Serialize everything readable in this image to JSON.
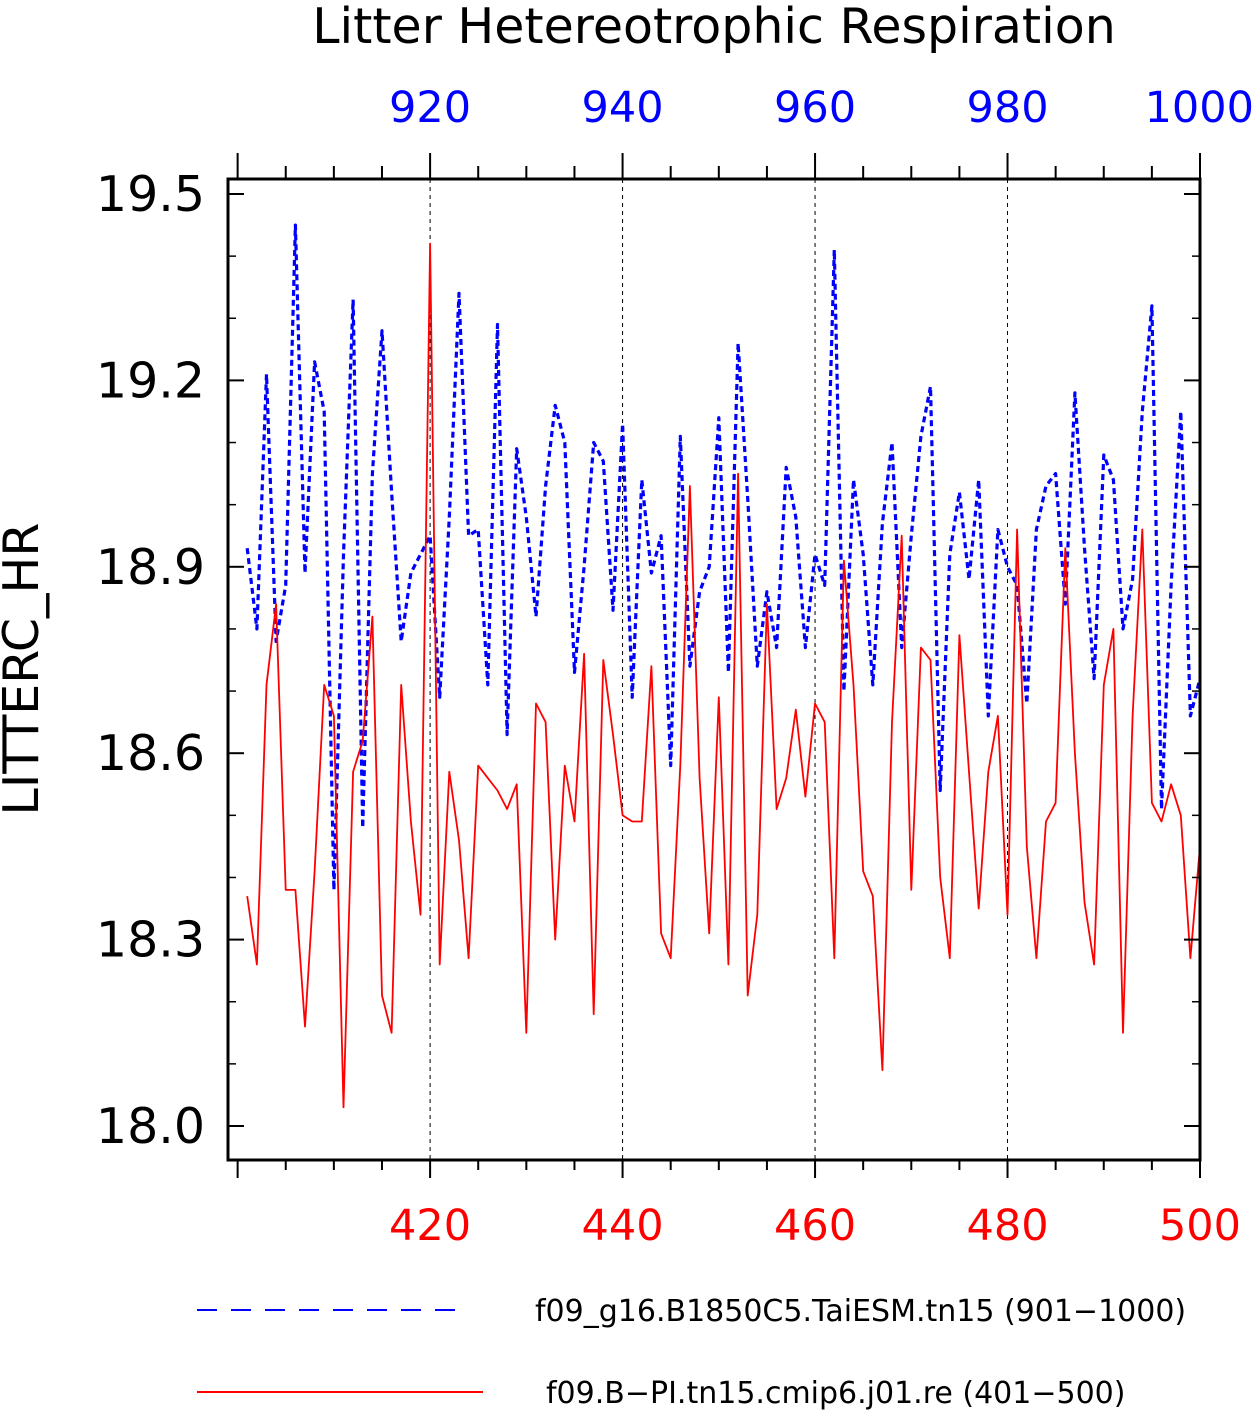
{
  "chart_data": {
    "type": "line",
    "title": "Litter Hetereotrophic Respiration",
    "ylabel": "LITTERC_HR",
    "xlabel": "",
    "ylim": [
      18.0,
      19.5
    ],
    "yticks": [
      "18.0",
      "18.3",
      "18.6",
      "18.9",
      "19.2",
      "19.5"
    ],
    "x_bottom": {
      "range": [
        401,
        500
      ],
      "ticks": [
        "420",
        "440",
        "460",
        "480",
        "500"
      ],
      "color": "#ff0000"
    },
    "x_top": {
      "range": [
        901,
        1000
      ],
      "ticks": [
        "920",
        "940",
        "960",
        "980",
        "1000"
      ],
      "color": "#0000ff"
    },
    "grid": "vertical dashed at major ticks",
    "legend_position": "bottom",
    "series": [
      {
        "name": "f09_g16.B1850C5.TaiESM.tn15 (901−1000)",
        "color": "#0000ff",
        "style": "dashed",
        "x_axis": "top",
        "x": [
          901,
          902,
          903,
          904,
          905,
          906,
          907,
          908,
          909,
          910,
          911,
          912,
          913,
          914,
          915,
          916,
          917,
          918,
          919,
          920,
          921,
          922,
          923,
          924,
          925,
          926,
          927,
          928,
          929,
          930,
          931,
          932,
          933,
          934,
          935,
          936,
          937,
          938,
          939,
          940,
          941,
          942,
          943,
          944,
          945,
          946,
          947,
          948,
          949,
          950,
          951,
          952,
          953,
          954,
          955,
          956,
          957,
          958,
          959,
          960,
          961,
          962,
          963,
          964,
          965,
          966,
          967,
          968,
          969,
          970,
          971,
          972,
          973,
          974,
          975,
          976,
          977,
          978,
          979,
          980,
          981,
          982,
          983,
          984,
          985,
          986,
          987,
          988,
          989,
          990,
          991,
          992,
          993,
          994,
          995,
          996,
          997,
          998,
          999,
          1000
        ],
        "values": [
          18.93,
          18.8,
          19.21,
          18.78,
          18.87,
          19.45,
          18.89,
          19.23,
          19.15,
          18.38,
          18.92,
          19.33,
          18.48,
          19.05,
          19.28,
          19.02,
          18.78,
          18.89,
          18.92,
          18.95,
          18.69,
          18.98,
          19.34,
          18.95,
          18.96,
          18.71,
          19.29,
          18.63,
          19.09,
          18.98,
          18.82,
          19.03,
          19.16,
          19.1,
          18.73,
          18.9,
          19.1,
          19.07,
          18.83,
          19.13,
          18.69,
          19.04,
          18.89,
          18.95,
          18.58,
          19.11,
          18.74,
          18.86,
          18.9,
          19.14,
          18.73,
          19.26,
          19.01,
          18.74,
          18.86,
          18.77,
          19.06,
          18.98,
          18.77,
          18.92,
          18.87,
          19.41,
          18.7,
          19.04,
          18.92,
          18.71,
          18.97,
          19.1,
          18.77,
          18.95,
          19.11,
          19.19,
          18.54,
          18.92,
          19.02,
          18.88,
          19.04,
          18.66,
          18.96,
          18.9,
          18.87,
          18.68,
          18.96,
          19.03,
          19.05,
          18.84,
          19.18,
          18.93,
          18.72,
          19.08,
          19.04,
          18.8,
          18.88,
          19.15,
          19.32,
          18.51,
          18.87,
          19.15,
          18.66,
          18.72
        ]
      },
      {
        "name": "f09.B−PI.tn15.cmip6.j01.re (401−500)",
        "color": "#ff0000",
        "style": "solid",
        "x_axis": "bottom",
        "x": [
          401,
          402,
          403,
          404,
          405,
          406,
          407,
          408,
          409,
          410,
          411,
          412,
          413,
          414,
          415,
          416,
          417,
          418,
          419,
          420,
          421,
          422,
          423,
          424,
          425,
          426,
          427,
          428,
          429,
          430,
          431,
          432,
          433,
          434,
          435,
          436,
          437,
          438,
          439,
          440,
          441,
          442,
          443,
          444,
          445,
          446,
          447,
          448,
          449,
          450,
          451,
          452,
          453,
          454,
          455,
          456,
          457,
          458,
          459,
          460,
          461,
          462,
          463,
          464,
          465,
          466,
          467,
          468,
          469,
          470,
          471,
          472,
          473,
          474,
          475,
          476,
          477,
          478,
          479,
          480,
          481,
          482,
          483,
          484,
          485,
          486,
          487,
          488,
          489,
          490,
          491,
          492,
          493,
          494,
          495,
          496,
          497,
          498,
          499,
          500
        ],
        "values": [
          18.37,
          18.26,
          18.71,
          18.84,
          18.38,
          18.38,
          18.16,
          18.41,
          18.71,
          18.66,
          18.03,
          18.57,
          18.62,
          18.82,
          18.21,
          18.15,
          18.71,
          18.49,
          18.34,
          19.42,
          18.26,
          18.57,
          18.46,
          18.27,
          18.58,
          18.56,
          18.54,
          18.51,
          18.55,
          18.15,
          18.68,
          18.65,
          18.3,
          18.58,
          18.49,
          18.76,
          18.18,
          18.75,
          18.63,
          18.5,
          18.49,
          18.49,
          18.74,
          18.31,
          18.27,
          18.58,
          19.03,
          18.56,
          18.31,
          18.69,
          18.26,
          19.05,
          18.21,
          18.34,
          18.84,
          18.51,
          18.56,
          18.67,
          18.53,
          18.68,
          18.65,
          18.27,
          18.91,
          18.71,
          18.41,
          18.37,
          18.09,
          18.65,
          18.95,
          18.38,
          18.77,
          18.75,
          18.4,
          18.27,
          18.79,
          18.57,
          18.35,
          18.57,
          18.66,
          18.34,
          18.96,
          18.45,
          18.27,
          18.49,
          18.52,
          18.93,
          18.6,
          18.36,
          18.26,
          18.71,
          18.8,
          18.15,
          18.66,
          18.96,
          18.52,
          18.49,
          18.55,
          18.5,
          18.27,
          18.45
        ]
      }
    ]
  }
}
